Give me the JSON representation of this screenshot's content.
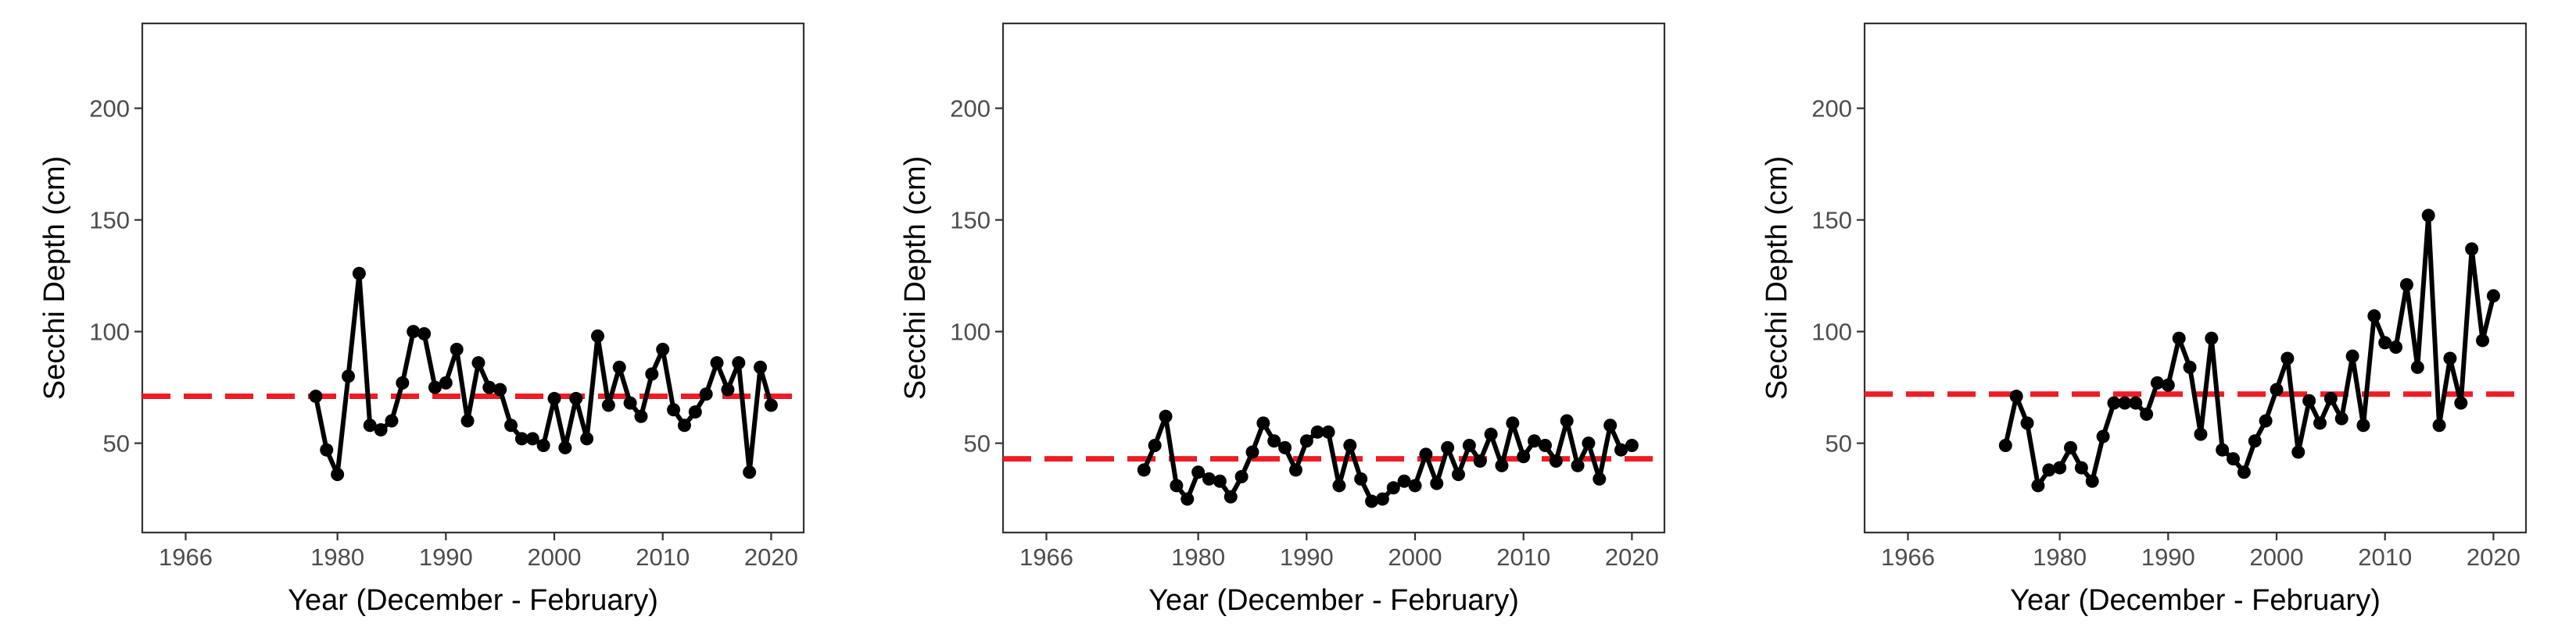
{
  "chart_data": [
    {
      "type": "line",
      "xlabel": "Year (December - February)",
      "ylabel": "Secchi Depth (cm)",
      "xlim": [
        1962,
        2023
      ],
      "ylim": [
        10,
        238
      ],
      "xticks": [
        1966,
        1980,
        1990,
        2000,
        2010,
        2020
      ],
      "yticks": [
        50,
        100,
        150,
        200
      ],
      "grid": false,
      "reference_line": {
        "y": 71,
        "color": "#ee1c25",
        "style": "dashed"
      },
      "series": [
        {
          "x": [
            1978,
            1979,
            1980,
            1981,
            1982,
            1983,
            1984,
            1985,
            1986,
            1987,
            1988,
            1989,
            1990,
            1991,
            1992,
            1993,
            1994,
            1995,
            1996,
            1997,
            1998,
            1999,
            2000,
            2001,
            2002,
            2003,
            2004,
            2005,
            2006,
            2007,
            2008,
            2009,
            2010,
            2011,
            2012,
            2013,
            2014,
            2015,
            2016,
            2017,
            2018,
            2019,
            2020
          ],
          "y": [
            71,
            47,
            36,
            80,
            126,
            58,
            56,
            60,
            77,
            100,
            99,
            75,
            77,
            92,
            60,
            86,
            75,
            74,
            58,
            52,
            52,
            49,
            70,
            48,
            70,
            52,
            98,
            67,
            84,
            68,
            62,
            81,
            92,
            65,
            58,
            64,
            72,
            86,
            74,
            86,
            37,
            84,
            67
          ]
        }
      ]
    },
    {
      "type": "line",
      "xlabel": "Year (December - February)",
      "ylabel": "Secchi Depth (cm)",
      "xlim": [
        1962,
        2023
      ],
      "ylim": [
        10,
        238
      ],
      "xticks": [
        1966,
        1980,
        1990,
        2000,
        2010,
        2020
      ],
      "yticks": [
        50,
        100,
        150,
        200
      ],
      "grid": false,
      "reference_line": {
        "y": 43,
        "color": "#ee1c25",
        "style": "dashed"
      },
      "series": [
        {
          "x": [
            1975,
            1976,
            1977,
            1978,
            1979,
            1980,
            1981,
            1982,
            1983,
            1984,
            1985,
            1986,
            1987,
            1988,
            1989,
            1990,
            1991,
            1992,
            1993,
            1994,
            1995,
            1996,
            1997,
            1998,
            1999,
            2000,
            2001,
            2002,
            2003,
            2004,
            2005,
            2006,
            2007,
            2008,
            2009,
            2010,
            2011,
            2012,
            2013,
            2014,
            2015,
            2016,
            2017,
            2018,
            2019,
            2020
          ],
          "y": [
            38,
            49,
            62,
            31,
            25,
            37,
            34,
            33,
            26,
            35,
            46,
            59,
            51,
            48,
            38,
            51,
            55,
            55,
            31,
            49,
            34,
            24,
            25,
            30,
            33,
            31,
            45,
            32,
            48,
            36,
            49,
            42,
            54,
            40,
            59,
            44,
            51,
            49,
            42,
            60,
            40,
            50,
            34,
            58,
            47,
            49
          ]
        }
      ]
    },
    {
      "type": "line",
      "xlabel": "Year (December - February)",
      "ylabel": "Secchi Depth (cm)",
      "xlim": [
        1962,
        2023
      ],
      "ylim": [
        10,
        238
      ],
      "xticks": [
        1966,
        1980,
        1990,
        2000,
        2010,
        2020
      ],
      "yticks": [
        50,
        100,
        150,
        200
      ],
      "grid": false,
      "reference_line": {
        "y": 72,
        "color": "#ee1c25",
        "style": "dashed"
      },
      "series": [
        {
          "x": [
            1975,
            1976,
            1977,
            1978,
            1979,
            1980,
            1981,
            1982,
            1983,
            1984,
            1985,
            1986,
            1987,
            1988,
            1989,
            1990,
            1991,
            1992,
            1993,
            1994,
            1995,
            1996,
            1997,
            1998,
            1999,
            2000,
            2001,
            2002,
            2003,
            2004,
            2005,
            2006,
            2007,
            2008,
            2009,
            2010,
            2011,
            2012,
            2013,
            2014,
            2015,
            2016,
            2017,
            2018,
            2019,
            2020
          ],
          "y": [
            49,
            71,
            59,
            31,
            38,
            39,
            48,
            39,
            33,
            53,
            68,
            68,
            68,
            63,
            77,
            76,
            97,
            84,
            54,
            97,
            47,
            43,
            37,
            51,
            60,
            74,
            88,
            46,
            69,
            59,
            70,
            61,
            89,
            58,
            107,
            95,
            93,
            121,
            84,
            152,
            58,
            88,
            68,
            137,
            96,
            116
          ]
        }
      ]
    }
  ]
}
